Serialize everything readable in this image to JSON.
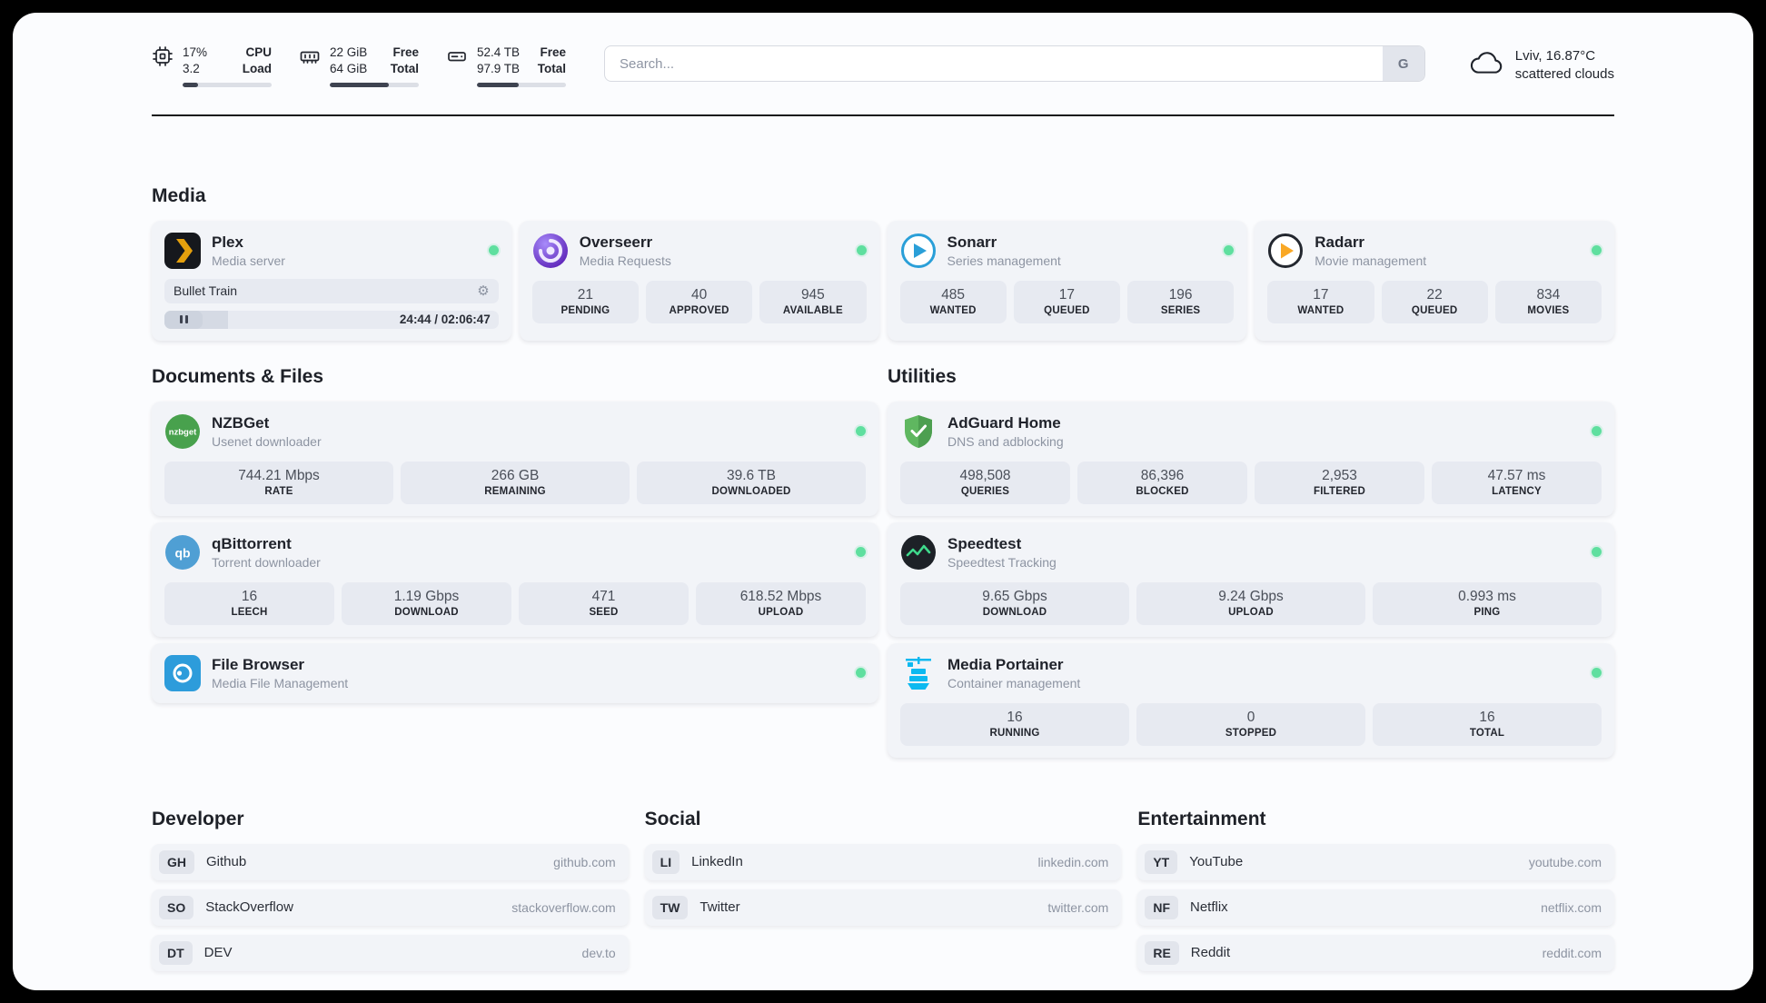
{
  "icons": {
    "gear": "⚙"
  },
  "colors": {
    "status_online": "#5fdf9f",
    "plex_accent": "#e5a00d",
    "panel_bg": "#fbfcfe"
  },
  "topbar": {
    "monitors": [
      {
        "v1": "17%",
        "v2": "3.2",
        "l1": "CPU",
        "l2": "Load",
        "fill": 17
      },
      {
        "v1": "22 GiB",
        "v2": "64 GiB",
        "l1": "Free",
        "l2": "Total",
        "fill": 66
      },
      {
        "v1": "52.4 TB",
        "v2": "97.9 TB",
        "l1": "Free",
        "l2": "Total",
        "fill": 47
      }
    ],
    "search": {
      "placeholder": "Search...",
      "button_label": "G"
    },
    "weather": {
      "location": "Lviv, 16.87°C",
      "condition": "scattered clouds"
    }
  },
  "media": {
    "title": "Media",
    "plex": {
      "name": "Plex",
      "subtitle": "Media server",
      "now_playing": "Bullet Train",
      "time": "24:44 / 02:06:47",
      "progress": 19
    },
    "cards": [
      {
        "name": "Overseerr",
        "subtitle": "Media Requests",
        "stats": [
          {
            "value": "21",
            "label": "PENDING"
          },
          {
            "value": "40",
            "label": "APPROVED"
          },
          {
            "value": "945",
            "label": "AVAILABLE"
          }
        ]
      },
      {
        "name": "Sonarr",
        "subtitle": "Series management",
        "stats": [
          {
            "value": "485",
            "label": "WANTED"
          },
          {
            "value": "17",
            "label": "QUEUED"
          },
          {
            "value": "196",
            "label": "SERIES"
          }
        ]
      },
      {
        "name": "Radarr",
        "subtitle": "Movie management",
        "stats": [
          {
            "value": "17",
            "label": "WANTED"
          },
          {
            "value": "22",
            "label": "QUEUED"
          },
          {
            "value": "834",
            "label": "MOVIES"
          }
        ]
      }
    ]
  },
  "documents": {
    "title": "Documents & Files",
    "cards": [
      {
        "name": "NZBGet",
        "subtitle": "Usenet downloader",
        "stats": [
          {
            "value": "744.21 Mbps",
            "label": "RATE"
          },
          {
            "value": "266 GB",
            "label": "REMAINING"
          },
          {
            "value": "39.6 TB",
            "label": "DOWNLOADED"
          }
        ]
      },
      {
        "name": "qBittorrent",
        "subtitle": "Torrent downloader",
        "stats": [
          {
            "value": "16",
            "label": "LEECH"
          },
          {
            "value": "1.19 Gbps",
            "label": "DOWNLOAD"
          },
          {
            "value": "471",
            "label": "SEED"
          },
          {
            "value": "618.52 Mbps",
            "label": "UPLOAD"
          }
        ]
      },
      {
        "name": "File Browser",
        "subtitle": "Media File Management",
        "stats": []
      }
    ]
  },
  "utilities": {
    "title": "Utilities",
    "cards": [
      {
        "name": "AdGuard Home",
        "subtitle": "DNS and adblocking",
        "stats": [
          {
            "value": "498,508",
            "label": "QUERIES"
          },
          {
            "value": "86,396",
            "label": "BLOCKED"
          },
          {
            "value": "2,953",
            "label": "FILTERED"
          },
          {
            "value": "47.57 ms",
            "label": "LATENCY"
          }
        ]
      },
      {
        "name": "Speedtest",
        "subtitle": "Speedtest Tracking",
        "stats": [
          {
            "value": "9.65 Gbps",
            "label": "DOWNLOAD"
          },
          {
            "value": "9.24 Gbps",
            "label": "UPLOAD"
          },
          {
            "value": "0.993 ms",
            "label": "PING"
          }
        ]
      },
      {
        "name": "Media Portainer",
        "subtitle": "Container management",
        "stats": [
          {
            "value": "16",
            "label": "RUNNING"
          },
          {
            "value": "0",
            "label": "STOPPED"
          },
          {
            "value": "16",
            "label": "TOTAL"
          }
        ]
      }
    ]
  },
  "links": {
    "developer": {
      "title": "Developer",
      "items": [
        {
          "abbr": "GH",
          "name": "Github",
          "url": "github.com"
        },
        {
          "abbr": "SO",
          "name": "StackOverflow",
          "url": "stackoverflow.com"
        },
        {
          "abbr": "DT",
          "name": "DEV",
          "url": "dev.to"
        }
      ]
    },
    "social": {
      "title": "Social",
      "items": [
        {
          "abbr": "LI",
          "name": "LinkedIn",
          "url": "linkedin.com"
        },
        {
          "abbr": "TW",
          "name": "Twitter",
          "url": "twitter.com"
        }
      ]
    },
    "entertainment": {
      "title": "Entertainment",
      "items": [
        {
          "abbr": "YT",
          "name": "YouTube",
          "url": "youtube.com"
        },
        {
          "abbr": "NF",
          "name": "Netflix",
          "url": "netflix.com"
        },
        {
          "abbr": "RE",
          "name": "Reddit",
          "url": "reddit.com"
        }
      ]
    }
  }
}
